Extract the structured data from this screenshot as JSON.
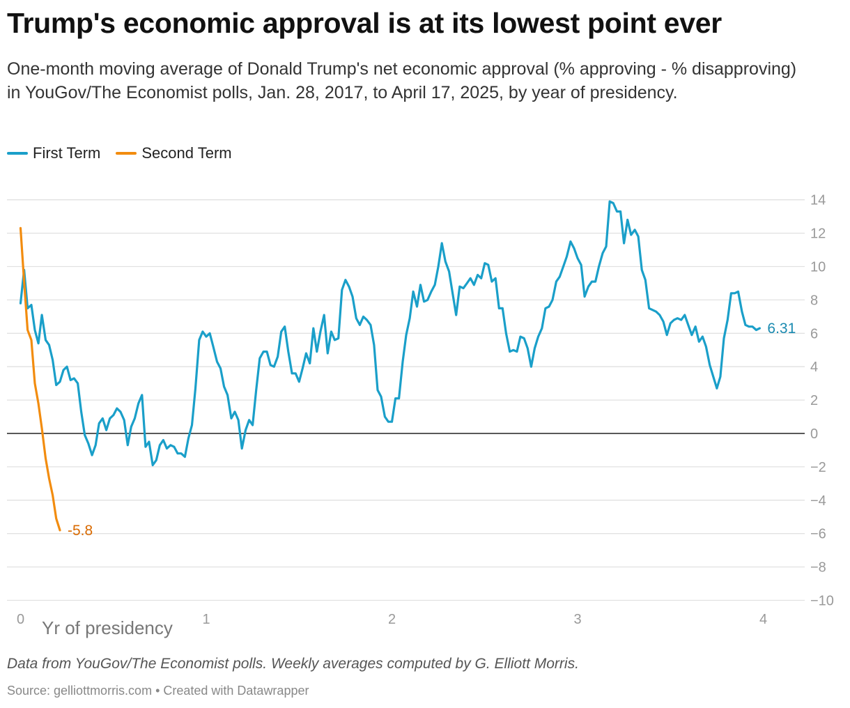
{
  "header": {
    "title": "Trump's economic approval is at its lowest point ever",
    "subtitle": "One-month moving average of Donald Trump's net economic approval (% approving - % disapproving) in YouGov/The Economist polls, Jan. 28, 2017, to April 17, 2025, by year of presidency."
  },
  "legend": {
    "items": [
      {
        "label": "First Term",
        "color": "#1a9fc9"
      },
      {
        "label": "Second Term",
        "color": "#f28c0f"
      }
    ]
  },
  "chart_data": {
    "type": "line",
    "title": "Trump's economic approval is at its lowest point ever",
    "xlabel": "Yr of presidency",
    "ylabel": "",
    "xlim": [
      0,
      4.2
    ],
    "ylim": [
      -10,
      14.5
    ],
    "x_ticks": [
      0,
      1,
      2,
      3,
      4
    ],
    "y_ticks": [
      14,
      12,
      10,
      8,
      6,
      4,
      2,
      0,
      -2,
      -4,
      -6,
      -8,
      -10
    ],
    "y_tick_labels": [
      "14",
      "12",
      "10",
      "8",
      "6",
      "4",
      "2",
      "0",
      "−2",
      "−4",
      "−6",
      "−8",
      "−10"
    ],
    "grid": true,
    "legend_position": "top-left",
    "series": [
      {
        "name": "First Term",
        "color": "#1a9fc9",
        "end_label": "6.31",
        "label_color": "#1a8ab0",
        "points": [
          [
            0,
            7.8
          ],
          [
            0.019,
            9.8
          ],
          [
            0.038,
            7.5
          ],
          [
            0.058,
            7.7
          ],
          [
            0.077,
            6.2
          ],
          [
            0.096,
            5.4
          ],
          [
            0.115,
            7.1
          ],
          [
            0.135,
            5.6
          ],
          [
            0.154,
            5.3
          ],
          [
            0.173,
            4.4
          ],
          [
            0.192,
            2.9
          ],
          [
            0.212,
            3.1
          ],
          [
            0.231,
            3.8
          ],
          [
            0.25,
            4.0
          ],
          [
            0.269,
            3.2
          ],
          [
            0.288,
            3.3
          ],
          [
            0.308,
            3.0
          ],
          [
            0.327,
            1.3
          ],
          [
            0.346,
            -0.1
          ],
          [
            0.365,
            -0.6
          ],
          [
            0.385,
            -1.3
          ],
          [
            0.404,
            -0.7
          ],
          [
            0.423,
            0.6
          ],
          [
            0.442,
            0.9
          ],
          [
            0.462,
            0.2
          ],
          [
            0.481,
            0.9
          ],
          [
            0.5,
            1.1
          ],
          [
            0.519,
            1.5
          ],
          [
            0.538,
            1.3
          ],
          [
            0.558,
            0.8
          ],
          [
            0.577,
            -0.7
          ],
          [
            0.596,
            0.4
          ],
          [
            0.615,
            0.9
          ],
          [
            0.635,
            1.8
          ],
          [
            0.654,
            2.3
          ],
          [
            0.673,
            -0.8
          ],
          [
            0.692,
            -0.5
          ],
          [
            0.712,
            -1.9
          ],
          [
            0.731,
            -1.6
          ],
          [
            0.75,
            -0.7
          ],
          [
            0.769,
            -0.4
          ],
          [
            0.788,
            -0.9
          ],
          [
            0.808,
            -0.7
          ],
          [
            0.827,
            -0.8
          ],
          [
            0.846,
            -1.2
          ],
          [
            0.865,
            -1.2
          ],
          [
            0.885,
            -1.4
          ],
          [
            0.904,
            -0.3
          ],
          [
            0.923,
            0.5
          ],
          [
            0.942,
            2.7
          ],
          [
            0.962,
            5.6
          ],
          [
            0.981,
            6.1
          ],
          [
            1,
            5.8
          ],
          [
            1.019,
            6.0
          ],
          [
            1.038,
            5.2
          ],
          [
            1.058,
            4.3
          ],
          [
            1.077,
            3.9
          ],
          [
            1.096,
            2.8
          ],
          [
            1.115,
            2.3
          ],
          [
            1.135,
            0.9
          ],
          [
            1.154,
            1.3
          ],
          [
            1.173,
            0.8
          ],
          [
            1.192,
            -0.9
          ],
          [
            1.212,
            0.2
          ],
          [
            1.231,
            0.8
          ],
          [
            1.25,
            0.5
          ],
          [
            1.269,
            2.6
          ],
          [
            1.288,
            4.5
          ],
          [
            1.308,
            4.9
          ],
          [
            1.327,
            4.9
          ],
          [
            1.346,
            4.1
          ],
          [
            1.365,
            4.0
          ],
          [
            1.385,
            4.6
          ],
          [
            1.404,
            6.1
          ],
          [
            1.423,
            6.4
          ],
          [
            1.442,
            4.9
          ],
          [
            1.462,
            3.6
          ],
          [
            1.481,
            3.6
          ],
          [
            1.5,
            3.1
          ],
          [
            1.519,
            3.9
          ],
          [
            1.538,
            4.8
          ],
          [
            1.558,
            4.2
          ],
          [
            1.577,
            6.3
          ],
          [
            1.596,
            4.9
          ],
          [
            1.615,
            6.1
          ],
          [
            1.635,
            7.1
          ],
          [
            1.654,
            4.8
          ],
          [
            1.673,
            6.1
          ],
          [
            1.692,
            5.6
          ],
          [
            1.712,
            5.7
          ],
          [
            1.731,
            8.6
          ],
          [
            1.75,
            9.2
          ],
          [
            1.769,
            8.8
          ],
          [
            1.788,
            8.2
          ],
          [
            1.808,
            6.9
          ],
          [
            1.827,
            6.5
          ],
          [
            1.846,
            7.0
          ],
          [
            1.865,
            6.8
          ],
          [
            1.885,
            6.5
          ],
          [
            1.904,
            5.3
          ],
          [
            1.923,
            2.6
          ],
          [
            1.942,
            2.2
          ],
          [
            1.962,
            1.0
          ],
          [
            1.981,
            0.7
          ],
          [
            2,
            0.7
          ],
          [
            2.019,
            2.1
          ],
          [
            2.038,
            2.1
          ],
          [
            2.058,
            4.3
          ],
          [
            2.077,
            5.9
          ],
          [
            2.096,
            6.9
          ],
          [
            2.115,
            8.5
          ],
          [
            2.135,
            7.6
          ],
          [
            2.154,
            8.9
          ],
          [
            2.173,
            7.9
          ],
          [
            2.192,
            8.0
          ],
          [
            2.212,
            8.5
          ],
          [
            2.231,
            8.9
          ],
          [
            2.25,
            10.0
          ],
          [
            2.269,
            11.4
          ],
          [
            2.288,
            10.3
          ],
          [
            2.308,
            9.7
          ],
          [
            2.327,
            8.4
          ],
          [
            2.346,
            7.1
          ],
          [
            2.365,
            8.8
          ],
          [
            2.385,
            8.7
          ],
          [
            2.404,
            9.0
          ],
          [
            2.423,
            9.3
          ],
          [
            2.442,
            8.9
          ],
          [
            2.462,
            9.5
          ],
          [
            2.481,
            9.3
          ],
          [
            2.5,
            10.2
          ],
          [
            2.519,
            10.1
          ],
          [
            2.538,
            9.1
          ],
          [
            2.558,
            9.3
          ],
          [
            2.577,
            7.5
          ],
          [
            2.596,
            7.5
          ],
          [
            2.615,
            6.0
          ],
          [
            2.635,
            4.9
          ],
          [
            2.654,
            5.0
          ],
          [
            2.673,
            4.9
          ],
          [
            2.692,
            5.8
          ],
          [
            2.712,
            5.7
          ],
          [
            2.731,
            5.1
          ],
          [
            2.75,
            4.0
          ],
          [
            2.769,
            5.1
          ],
          [
            2.788,
            5.8
          ],
          [
            2.808,
            6.3
          ],
          [
            2.827,
            7.5
          ],
          [
            2.846,
            7.6
          ],
          [
            2.865,
            8.0
          ],
          [
            2.885,
            9.1
          ],
          [
            2.904,
            9.4
          ],
          [
            2.923,
            10.0
          ],
          [
            2.942,
            10.6
          ],
          [
            2.962,
            11.5
          ],
          [
            2.981,
            11.1
          ],
          [
            3,
            10.5
          ],
          [
            3.019,
            10.1
          ],
          [
            3.038,
            8.2
          ],
          [
            3.058,
            8.8
          ],
          [
            3.077,
            9.1
          ],
          [
            3.096,
            9.1
          ],
          [
            3.115,
            10.0
          ],
          [
            3.135,
            10.8
          ],
          [
            3.154,
            11.2
          ],
          [
            3.173,
            13.9
          ],
          [
            3.192,
            13.8
          ],
          [
            3.212,
            13.3
          ],
          [
            3.231,
            13.3
          ],
          [
            3.25,
            11.4
          ],
          [
            3.269,
            12.8
          ],
          [
            3.288,
            11.9
          ],
          [
            3.308,
            12.2
          ],
          [
            3.327,
            11.8
          ],
          [
            3.346,
            9.8
          ],
          [
            3.365,
            9.2
          ],
          [
            3.385,
            7.5
          ],
          [
            3.404,
            7.4
          ],
          [
            3.423,
            7.3
          ],
          [
            3.442,
            7.1
          ],
          [
            3.462,
            6.7
          ],
          [
            3.481,
            5.9
          ],
          [
            3.5,
            6.6
          ],
          [
            3.519,
            6.8
          ],
          [
            3.538,
            6.9
          ],
          [
            3.558,
            6.8
          ],
          [
            3.577,
            7.1
          ],
          [
            3.596,
            6.5
          ],
          [
            3.615,
            5.9
          ],
          [
            3.635,
            6.4
          ],
          [
            3.654,
            5.5
          ],
          [
            3.673,
            5.8
          ],
          [
            3.692,
            5.2
          ],
          [
            3.712,
            4.1
          ],
          [
            3.731,
            3.4
          ],
          [
            3.75,
            2.7
          ],
          [
            3.769,
            3.4
          ],
          [
            3.788,
            5.7
          ],
          [
            3.808,
            6.8
          ],
          [
            3.827,
            8.4
          ],
          [
            3.846,
            8.4
          ],
          [
            3.865,
            8.5
          ],
          [
            3.885,
            7.3
          ],
          [
            3.904,
            6.5
          ],
          [
            3.923,
            6.4
          ],
          [
            3.942,
            6.4
          ],
          [
            3.962,
            6.2
          ],
          [
            3.981,
            6.3
          ]
        ]
      },
      {
        "name": "Second Term",
        "color": "#f28c0f",
        "end_label": "-5.8",
        "label_color": "#d96a00",
        "points": [
          [
            0,
            12.3
          ],
          [
            0.019,
            9.1
          ],
          [
            0.038,
            6.2
          ],
          [
            0.058,
            5.6
          ],
          [
            0.077,
            3.0
          ],
          [
            0.096,
            1.8
          ],
          [
            0.115,
            0.3
          ],
          [
            0.135,
            -1.5
          ],
          [
            0.154,
            -2.7
          ],
          [
            0.173,
            -3.7
          ],
          [
            0.192,
            -5.1
          ],
          [
            0.212,
            -5.8
          ]
        ]
      }
    ]
  },
  "footer": {
    "note": "Data from YouGov/The Economist polls. Weekly averages computed by G. Elliott Morris.",
    "source": "Source: gelliottmorris.com • Created with Datawrapper"
  }
}
